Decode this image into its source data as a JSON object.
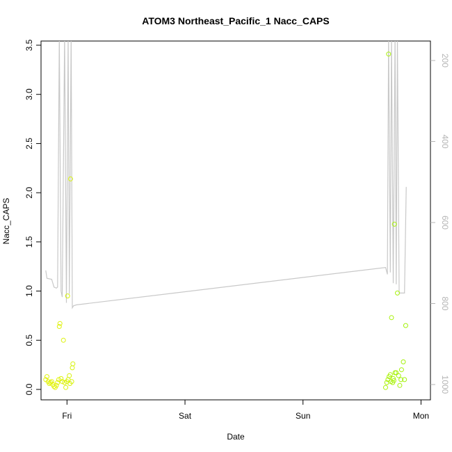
{
  "chart_data": {
    "type": "scatter",
    "title": "ATOM3 Northeast_Pacific_1 Nacc_CAPS",
    "xlabel": "Date",
    "ylabel": "Nacc_CAPS",
    "x_ticks": [
      "Fri",
      "Sat",
      "Sun",
      "Mon"
    ],
    "y_ticks": [
      "0.0",
      "0.5",
      "1.0",
      "1.5",
      "2.0",
      "2.5",
      "3.0",
      "3.5"
    ],
    "y2_ticks": [
      "200",
      "400",
      "600",
      "800",
      "1000"
    ],
    "ylim": [
      0.0,
      3.5
    ],
    "y2lim_reversed": [
      1000,
      200
    ],
    "x_axis_unit": "days",
    "x_tick_values": [
      1,
      2,
      3,
      4
    ],
    "xlim": [
      0.78,
      4.08
    ],
    "colors": {
      "line": "#c8c8c8",
      "axis": "#000000",
      "right_axis": "#b4b4b4"
    },
    "series": [
      {
        "points": [
          {
            "x": 0.82,
            "y": 0.1,
            "c": "#e2f20a"
          },
          {
            "x": 0.83,
            "y": 0.13,
            "c": "#e0f20a"
          },
          {
            "x": 0.84,
            "y": 0.08,
            "c": "#e2f20a"
          },
          {
            "x": 0.85,
            "y": 0.06,
            "c": "#e0f20a"
          },
          {
            "x": 0.86,
            "y": 0.07,
            "c": "#e2f20a"
          },
          {
            "x": 0.87,
            "y": 0.08,
            "c": "#e0f20a"
          },
          {
            "x": 0.88,
            "y": 0.05,
            "c": "#e2f20a"
          },
          {
            "x": 0.89,
            "y": 0.03,
            "c": "#e0f20a"
          },
          {
            "x": 0.9,
            "y": 0.02,
            "c": "#e2f20a"
          },
          {
            "x": 0.91,
            "y": 0.04,
            "c": "#e2f20a"
          },
          {
            "x": 0.92,
            "y": 0.07,
            "c": "#dff20a"
          },
          {
            "x": 0.93,
            "y": 0.1,
            "c": "#dff20a"
          },
          {
            "x": 0.935,
            "y": 0.64,
            "c": "#dff20a"
          },
          {
            "x": 0.94,
            "y": 0.67,
            "c": "#dff20a"
          },
          {
            "x": 0.95,
            "y": 0.11,
            "c": "#dcf20a"
          },
          {
            "x": 0.96,
            "y": 0.08,
            "c": "#dcf20a"
          },
          {
            "x": 0.97,
            "y": 0.5,
            "c": "#dcf20a"
          },
          {
            "x": 0.98,
            "y": 0.07,
            "c": "#dcf20a"
          },
          {
            "x": 0.99,
            "y": 0.02,
            "c": "#dcf20a"
          },
          {
            "x": 1.0,
            "y": 0.08,
            "c": "#dcf20a"
          },
          {
            "x": 1.005,
            "y": 0.95,
            "c": "#d8f20a"
          },
          {
            "x": 1.01,
            "y": 0.1,
            "c": "#d8f20a"
          },
          {
            "x": 1.02,
            "y": 0.14,
            "c": "#d8f20a"
          },
          {
            "x": 1.025,
            "y": 0.06,
            "c": "#d8f20a"
          },
          {
            "x": 1.03,
            "y": 2.14,
            "c": "#d8f20a"
          },
          {
            "x": 1.04,
            "y": 0.08,
            "c": "#d8f20a"
          },
          {
            "x": 1.045,
            "y": 0.22,
            "c": "#d6f20a"
          },
          {
            "x": 1.05,
            "y": 0.26,
            "c": "#d6f20a"
          },
          {
            "x": 3.7,
            "y": 0.02,
            "c": "#acf20a"
          },
          {
            "x": 3.71,
            "y": 0.07,
            "c": "#acf20a"
          },
          {
            "x": 3.72,
            "y": 0.1,
            "c": "#acf20a"
          },
          {
            "x": 3.725,
            "y": 3.41,
            "c": "#aaf20a"
          },
          {
            "x": 3.73,
            "y": 0.13,
            "c": "#aaf20a"
          },
          {
            "x": 3.74,
            "y": 0.15,
            "c": "#aaf20a"
          },
          {
            "x": 3.745,
            "y": 0.08,
            "c": "#aaf20a"
          },
          {
            "x": 3.75,
            "y": 0.73,
            "c": "#a8f20a"
          },
          {
            "x": 3.76,
            "y": 0.07,
            "c": "#a8f20a"
          },
          {
            "x": 3.765,
            "y": 0.11,
            "c": "#a8f20a"
          },
          {
            "x": 3.77,
            "y": 0.09,
            "c": "#a8f20a"
          },
          {
            "x": 3.775,
            "y": 1.68,
            "c": "#a8f20a"
          },
          {
            "x": 3.78,
            "y": 0.17,
            "c": "#a6f20a"
          },
          {
            "x": 3.79,
            "y": 0.17,
            "c": "#a6f20a"
          },
          {
            "x": 3.8,
            "y": 0.98,
            "c": "#a6f20a"
          },
          {
            "x": 3.81,
            "y": 0.14,
            "c": "#a4f20a"
          },
          {
            "x": 3.82,
            "y": 0.04,
            "c": "#a4f20a"
          },
          {
            "x": 3.83,
            "y": 0.1,
            "c": "#a4f20a"
          },
          {
            "x": 3.835,
            "y": 0.2,
            "c": "#a4f20a"
          },
          {
            "x": 3.85,
            "y": 0.28,
            "c": "#a2f20a"
          },
          {
            "x": 3.86,
            "y": 0.1,
            "c": "#a2f20a"
          },
          {
            "x": 3.87,
            "y": 0.65,
            "c": "#a2f20a"
          }
        ]
      },
      {
        "axis": "right",
        "line": [
          [
            0.82,
            1.21
          ],
          [
            0.83,
            1.13
          ],
          [
            0.87,
            1.12
          ],
          [
            0.89,
            1.04
          ],
          [
            0.91,
            1.03
          ],
          [
            0.92,
            1.04
          ],
          [
            0.935,
            3.6
          ],
          [
            0.95,
            1.0
          ],
          [
            0.96,
            0.94
          ],
          [
            0.98,
            3.6
          ],
          [
            0.995,
            0.88
          ],
          [
            1.01,
            3.6
          ],
          [
            1.02,
            0.97
          ],
          [
            1.035,
            3.6
          ],
          [
            1.045,
            0.83
          ],
          [
            1.055,
            0.85
          ],
          [
            1.08,
            0.86
          ],
          [
            3.7,
            1.24
          ],
          [
            3.715,
            1.17
          ],
          [
            3.725,
            3.6
          ],
          [
            3.74,
            1.19
          ],
          [
            3.75,
            3.6
          ],
          [
            3.765,
            1.08
          ],
          [
            3.78,
            3.6
          ],
          [
            3.79,
            1.07
          ],
          [
            3.8,
            3.6
          ],
          [
            3.815,
            0.98
          ],
          [
            3.84,
            0.98
          ],
          [
            3.86,
            0.98
          ],
          [
            3.875,
            2.06
          ]
        ]
      }
    ]
  }
}
